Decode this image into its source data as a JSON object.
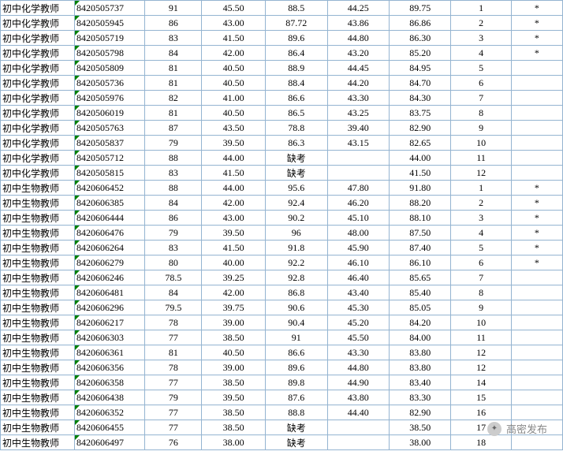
{
  "table": {
    "column_classes": [
      "col0",
      "col1",
      "col2",
      "col3",
      "col4",
      "col5",
      "col6",
      "col7",
      "col8"
    ],
    "border_color": "#94b4d1",
    "font_size": 12,
    "rows": [
      [
        "初中化学教师",
        "8420505737",
        "91",
        "45.50",
        "88.5",
        "44.25",
        "89.75",
        "1",
        "*"
      ],
      [
        "初中化学教师",
        "8420505945",
        "86",
        "43.00",
        "87.72",
        "43.86",
        "86.86",
        "2",
        "*"
      ],
      [
        "初中化学教师",
        "8420505719",
        "83",
        "41.50",
        "89.6",
        "44.80",
        "86.30",
        "3",
        "*"
      ],
      [
        "初中化学教师",
        "8420505798",
        "84",
        "42.00",
        "86.4",
        "43.20",
        "85.20",
        "4",
        "*"
      ],
      [
        "初中化学教师",
        "8420505809",
        "81",
        "40.50",
        "88.9",
        "44.45",
        "84.95",
        "5",
        ""
      ],
      [
        "初中化学教师",
        "8420505736",
        "81",
        "40.50",
        "88.4",
        "44.20",
        "84.70",
        "6",
        ""
      ],
      [
        "初中化学教师",
        "8420505976",
        "82",
        "41.00",
        "86.6",
        "43.30",
        "84.30",
        "7",
        ""
      ],
      [
        "初中化学教师",
        "8420506019",
        "81",
        "40.50",
        "86.5",
        "43.25",
        "83.75",
        "8",
        ""
      ],
      [
        "初中化学教师",
        "8420505763",
        "87",
        "43.50",
        "78.8",
        "39.40",
        "82.90",
        "9",
        ""
      ],
      [
        "初中化学教师",
        "8420505837",
        "79",
        "39.50",
        "86.3",
        "43.15",
        "82.65",
        "10",
        ""
      ],
      [
        "初中化学教师",
        "8420505712",
        "88",
        "44.00",
        "缺考",
        "",
        "44.00",
        "11",
        ""
      ],
      [
        "初中化学教师",
        "8420505815",
        "83",
        "41.50",
        "缺考",
        "",
        "41.50",
        "12",
        ""
      ],
      [
        "初中生物教师",
        "8420606452",
        "88",
        "44.00",
        "95.6",
        "47.80",
        "91.80",
        "1",
        "*"
      ],
      [
        "初中生物教师",
        "8420606385",
        "84",
        "42.00",
        "92.4",
        "46.20",
        "88.20",
        "2",
        "*"
      ],
      [
        "初中生物教师",
        "8420606444",
        "86",
        "43.00",
        "90.2",
        "45.10",
        "88.10",
        "3",
        "*"
      ],
      [
        "初中生物教师",
        "8420606476",
        "79",
        "39.50",
        "96",
        "48.00",
        "87.50",
        "4",
        "*"
      ],
      [
        "初中生物教师",
        "8420606264",
        "83",
        "41.50",
        "91.8",
        "45.90",
        "87.40",
        "5",
        "*"
      ],
      [
        "初中生物教师",
        "8420606279",
        "80",
        "40.00",
        "92.2",
        "46.10",
        "86.10",
        "6",
        "*"
      ],
      [
        "初中生物教师",
        "8420606246",
        "78.5",
        "39.25",
        "92.8",
        "46.40",
        "85.65",
        "7",
        ""
      ],
      [
        "初中生物教师",
        "8420606481",
        "84",
        "42.00",
        "86.8",
        "43.40",
        "85.40",
        "8",
        ""
      ],
      [
        "初中生物教师",
        "8420606296",
        "79.5",
        "39.75",
        "90.6",
        "45.30",
        "85.05",
        "9",
        ""
      ],
      [
        "初中生物教师",
        "8420606217",
        "78",
        "39.00",
        "90.4",
        "45.20",
        "84.20",
        "10",
        ""
      ],
      [
        "初中生物教师",
        "8420606303",
        "77",
        "38.50",
        "91",
        "45.50",
        "84.00",
        "11",
        ""
      ],
      [
        "初中生物教师",
        "8420606361",
        "81",
        "40.50",
        "86.6",
        "43.30",
        "83.80",
        "12",
        ""
      ],
      [
        "初中生物教师",
        "8420606356",
        "78",
        "39.00",
        "89.6",
        "44.80",
        "83.80",
        "12",
        ""
      ],
      [
        "初中生物教师",
        "8420606358",
        "77",
        "38.50",
        "89.8",
        "44.90",
        "83.40",
        "14",
        ""
      ],
      [
        "初中生物教师",
        "8420606438",
        "79",
        "39.50",
        "87.6",
        "43.80",
        "83.30",
        "15",
        ""
      ],
      [
        "初中生物教师",
        "8420606352",
        "77",
        "38.50",
        "88.8",
        "44.40",
        "82.90",
        "16",
        ""
      ],
      [
        "初中生物教师",
        "8420606455",
        "77",
        "38.50",
        "缺考",
        "",
        "38.50",
        "17",
        ""
      ],
      [
        "初中生物教师",
        "8420606497",
        "76",
        "38.00",
        "缺考",
        "",
        "38.00",
        "18",
        ""
      ]
    ]
  },
  "watermark": {
    "icon_glyph": "✦",
    "text": "高密发布",
    "color": "#888888"
  }
}
